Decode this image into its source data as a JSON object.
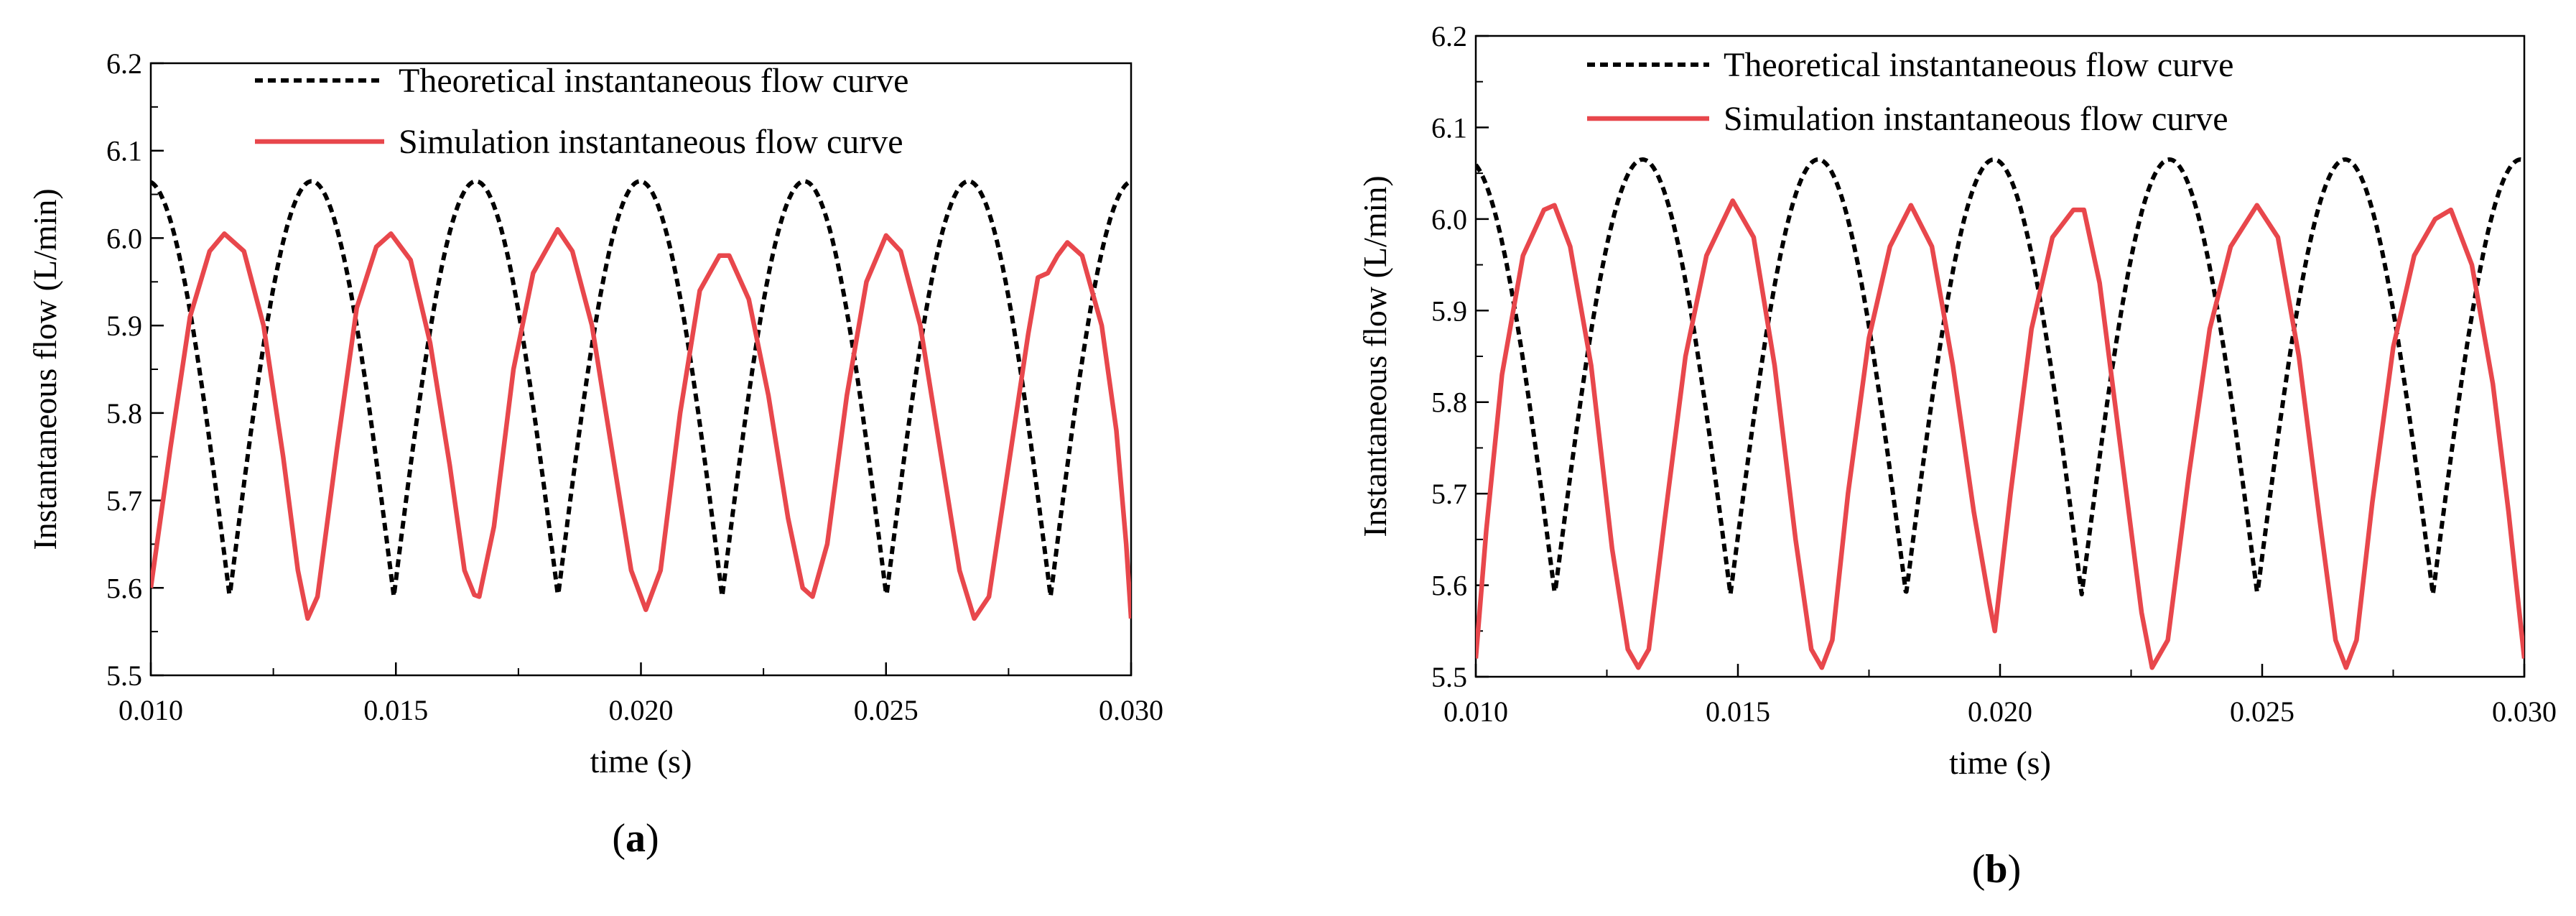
{
  "figure": {
    "background": "#ffffff",
    "theoretical_color": "#000000",
    "simulation_color": "#e8474c"
  },
  "chart_data": [
    {
      "type": "line",
      "panel_label": "a",
      "title": "",
      "xlabel": "time (s)",
      "ylabel": "Instantaneous flow (L/min)",
      "xlim": [
        0.01,
        0.03
      ],
      "ylim": [
        5.5,
        6.2
      ],
      "xticks": [
        "0.010",
        "0.015",
        "0.020",
        "0.025",
        "0.030"
      ],
      "yticks": [
        "5.5",
        "5.6",
        "5.7",
        "5.8",
        "5.9",
        "6.0",
        "6.1",
        "6.2"
      ],
      "grid": false,
      "legend_position": "top-center",
      "series": [
        {
          "name": "Theoretical instantaneous flow curve",
          "style": "dashed",
          "generator": {
            "kind": "pulse",
            "start_phase": 0.52,
            "period": 0.00335,
            "valley": 5.59,
            "peak": 6.065,
            "shift": 0.0003
          }
        },
        {
          "name": "Simulation instantaneous flow curve",
          "style": "solid",
          "points": [
            [
              0.01,
              5.6
            ],
            [
              0.0104,
              5.76
            ],
            [
              0.0108,
              5.91
            ],
            [
              0.0112,
              5.985
            ],
            [
              0.0115,
              6.005
            ],
            [
              0.0119,
              5.985
            ],
            [
              0.0123,
              5.9
            ],
            [
              0.0127,
              5.75
            ],
            [
              0.013,
              5.62
            ],
            [
              0.0132,
              5.565
            ],
            [
              0.0134,
              5.59
            ],
            [
              0.0138,
              5.76
            ],
            [
              0.0142,
              5.92
            ],
            [
              0.0146,
              5.99
            ],
            [
              0.0149,
              6.005
            ],
            [
              0.0153,
              5.975
            ],
            [
              0.0157,
              5.88
            ],
            [
              0.0161,
              5.74
            ],
            [
              0.0164,
              5.62
            ],
            [
              0.0166,
              5.592
            ],
            [
              0.0167,
              5.59
            ],
            [
              0.017,
              5.67
            ],
            [
              0.0174,
              5.85
            ],
            [
              0.0178,
              5.96
            ],
            [
              0.0183,
              6.01
            ],
            [
              0.0186,
              5.985
            ],
            [
              0.019,
              5.9
            ],
            [
              0.0194,
              5.76
            ],
            [
              0.0198,
              5.62
            ],
            [
              0.0201,
              5.575
            ],
            [
              0.0204,
              5.62
            ],
            [
              0.0208,
              5.8
            ],
            [
              0.0212,
              5.94
            ],
            [
              0.0216,
              5.98
            ],
            [
              0.0218,
              5.98
            ],
            [
              0.0222,
              5.93
            ],
            [
              0.0226,
              5.82
            ],
            [
              0.023,
              5.68
            ],
            [
              0.0233,
              5.6
            ],
            [
              0.0235,
              5.59
            ],
            [
              0.0238,
              5.65
            ],
            [
              0.0242,
              5.82
            ],
            [
              0.0246,
              5.95
            ],
            [
              0.025,
              6.003
            ],
            [
              0.0253,
              5.985
            ],
            [
              0.0257,
              5.9
            ],
            [
              0.0261,
              5.76
            ],
            [
              0.0265,
              5.62
            ],
            [
              0.0268,
              5.565
            ],
            [
              0.0271,
              5.59
            ],
            [
              0.0275,
              5.74
            ],
            [
              0.0279,
              5.89
            ],
            [
              0.0281,
              5.955
            ],
            [
              0.0283,
              5.96
            ],
            [
              0.0285,
              5.98
            ],
            [
              0.0287,
              5.995
            ],
            [
              0.029,
              5.98
            ],
            [
              0.0294,
              5.9
            ],
            [
              0.0297,
              5.78
            ],
            [
              0.0299,
              5.65
            ],
            [
              0.03,
              5.565
            ]
          ]
        }
      ]
    },
    {
      "type": "line",
      "panel_label": "b",
      "title": "",
      "xlabel": "time (s)",
      "ylabel": "Instantaneous flow  (L/min)",
      "xlim": [
        0.01,
        0.03
      ],
      "ylim": [
        5.5,
        6.2
      ],
      "xticks": [
        "0.010",
        "0.015",
        "0.020",
        "0.025",
        "0.030"
      ],
      "yticks": [
        "5.5",
        "5.6",
        "5.7",
        "5.8",
        "5.9",
        "6.0",
        "6.1",
        "6.2"
      ],
      "grid": false,
      "legend_position": "top-center",
      "series": [
        {
          "name": "Theoretical instantaneous flow curve",
          "style": "dashed",
          "generator": {
            "kind": "pulse",
            "start_phase": 0.55,
            "period": 0.00335,
            "valley": 5.59,
            "peak": 6.065,
            "shift": 0.0003
          }
        },
        {
          "name": "Simulation instantaneous flow curve",
          "style": "solid",
          "points": [
            [
              0.01,
              5.52
            ],
            [
              0.0102,
              5.66
            ],
            [
              0.0105,
              5.83
            ],
            [
              0.0109,
              5.96
            ],
            [
              0.0113,
              6.01
            ],
            [
              0.0115,
              6.015
            ],
            [
              0.0118,
              5.97
            ],
            [
              0.0122,
              5.84
            ],
            [
              0.0126,
              5.64
            ],
            [
              0.0129,
              5.53
            ],
            [
              0.0131,
              5.51
            ],
            [
              0.0133,
              5.53
            ],
            [
              0.0136,
              5.67
            ],
            [
              0.014,
              5.85
            ],
            [
              0.0144,
              5.96
            ],
            [
              0.0149,
              6.02
            ],
            [
              0.0153,
              5.98
            ],
            [
              0.0157,
              5.84
            ],
            [
              0.0161,
              5.65
            ],
            [
              0.0164,
              5.53
            ],
            [
              0.0166,
              5.51
            ],
            [
              0.0168,
              5.54
            ],
            [
              0.0171,
              5.7
            ],
            [
              0.0175,
              5.87
            ],
            [
              0.0179,
              5.97
            ],
            [
              0.0183,
              6.015
            ],
            [
              0.0187,
              5.97
            ],
            [
              0.0191,
              5.84
            ],
            [
              0.0195,
              5.68
            ],
            [
              0.0198,
              5.58
            ],
            [
              0.0199,
              5.55
            ],
            [
              0.0202,
              5.7
            ],
            [
              0.0206,
              5.88
            ],
            [
              0.021,
              5.98
            ],
            [
              0.0214,
              6.01
            ],
            [
              0.0216,
              6.01
            ],
            [
              0.0219,
              5.93
            ],
            [
              0.0223,
              5.75
            ],
            [
              0.0227,
              5.57
            ],
            [
              0.0229,
              5.51
            ],
            [
              0.0232,
              5.54
            ],
            [
              0.0236,
              5.72
            ],
            [
              0.024,
              5.88
            ],
            [
              0.0244,
              5.97
            ],
            [
              0.0249,
              6.015
            ],
            [
              0.0253,
              5.98
            ],
            [
              0.0257,
              5.85
            ],
            [
              0.0261,
              5.67
            ],
            [
              0.0264,
              5.54
            ],
            [
              0.0266,
              5.51
            ],
            [
              0.0268,
              5.54
            ],
            [
              0.0271,
              5.69
            ],
            [
              0.0275,
              5.86
            ],
            [
              0.0279,
              5.96
            ],
            [
              0.0283,
              6.0
            ],
            [
              0.0286,
              6.01
            ],
            [
              0.029,
              5.95
            ],
            [
              0.0294,
              5.82
            ],
            [
              0.0297,
              5.68
            ],
            [
              0.03,
              5.52
            ]
          ]
        }
      ]
    }
  ]
}
